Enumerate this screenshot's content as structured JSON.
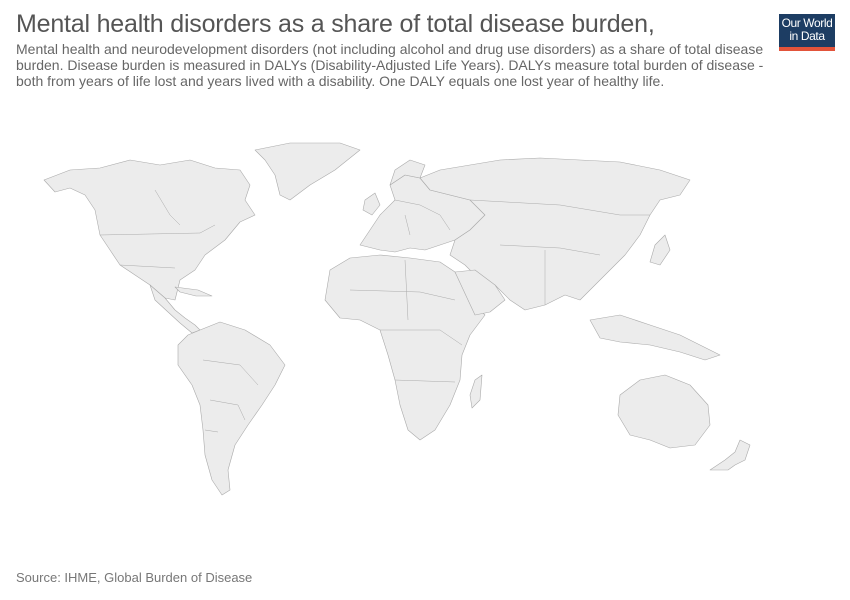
{
  "header": {
    "title": "Mental health disorders as a share of total disease burden,",
    "subtitle": "Mental health and neurodevelopment disorders (not including alcohol and drug use disorders) as a share of total disease burden. Disease burden is measured in DALYs (Disability-Adjusted Life Years). DALYs measure total burden of disease - both from years of life lost and years lived with a disability. One DALY equals one lost year of healthy life.",
    "logo_line1": "Our World",
    "logo_line2": "in Data"
  },
  "footer": {
    "source": "Source: IHME, Global Burden of Disease"
  },
  "colors": {
    "land": "#ececec",
    "border": "#aaaaaa",
    "logo_background": "#1d3d63",
    "logo_accent": "#e2533a"
  }
}
